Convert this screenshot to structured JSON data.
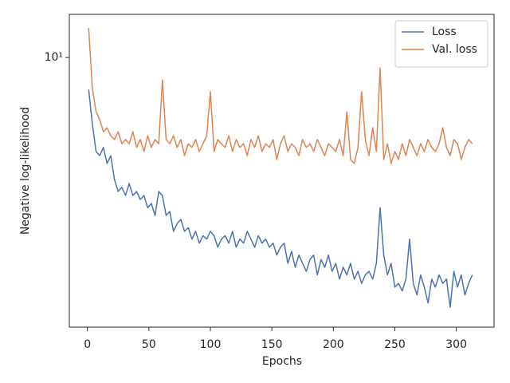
{
  "chart_data": {
    "type": "line",
    "xlabel": "Epochs",
    "ylabel": "Negative log-likelihood",
    "x": [
      1,
      4,
      7,
      10,
      13,
      16,
      19,
      22,
      25,
      28,
      31,
      34,
      37,
      40,
      43,
      46,
      49,
      52,
      55,
      58,
      61,
      64,
      67,
      70,
      73,
      76,
      79,
      82,
      85,
      88,
      91,
      94,
      97,
      100,
      103,
      106,
      109,
      112,
      115,
      118,
      121,
      124,
      127,
      130,
      133,
      136,
      139,
      142,
      145,
      148,
      151,
      154,
      157,
      160,
      163,
      166,
      169,
      172,
      175,
      178,
      181,
      184,
      187,
      190,
      193,
      196,
      199,
      202,
      205,
      208,
      211,
      214,
      217,
      220,
      223,
      226,
      229,
      232,
      235,
      238,
      241,
      244,
      247,
      250,
      253,
      256,
      259,
      262,
      265,
      268,
      271,
      274,
      277,
      280,
      283,
      286,
      289,
      292,
      295,
      298,
      301,
      304,
      307,
      310,
      313
    ],
    "series": [
      {
        "name": "Loss",
        "color": "#4c72b0",
        "values": [
          8.48,
          7.11,
          6.16,
          6.03,
          6.29,
          5.79,
          6.03,
          5.33,
          5.01,
          5.12,
          4.91,
          5.22,
          4.91,
          5.01,
          4.81,
          4.91,
          4.61,
          4.71,
          4.43,
          5.01,
          4.91,
          4.43,
          4.52,
          4.08,
          4.25,
          4.34,
          4.08,
          4.16,
          3.92,
          4.08,
          3.84,
          3.99,
          3.92,
          4.08,
          3.99,
          3.76,
          3.92,
          3.99,
          3.84,
          4.08,
          3.76,
          3.92,
          3.84,
          4.08,
          3.92,
          3.76,
          3.99,
          3.84,
          3.92,
          3.76,
          3.84,
          3.61,
          3.76,
          3.84,
          3.46,
          3.68,
          3.39,
          3.61,
          3.46,
          3.32,
          3.53,
          3.61,
          3.26,
          3.53,
          3.39,
          3.61,
          3.32,
          3.46,
          3.19,
          3.39,
          3.26,
          3.46,
          3.19,
          3.32,
          3.12,
          3.26,
          3.32,
          3.19,
          3.46,
          4.61,
          3.61,
          3.26,
          3.46,
          3.06,
          3.12,
          3.0,
          3.19,
          3.92,
          3.12,
          2.94,
          3.26,
          3.06,
          2.82,
          3.19,
          3.06,
          3.26,
          3.12,
          3.19,
          2.76,
          3.32,
          3.06,
          3.26,
          2.94,
          3.12,
          3.26
        ]
      },
      {
        "name": "Val. loss",
        "color": "#dd8452",
        "values": [
          11.64,
          8.55,
          7.56,
          7.26,
          6.82,
          6.96,
          6.68,
          6.55,
          6.82,
          6.41,
          6.55,
          6.41,
          6.82,
          6.29,
          6.55,
          6.16,
          6.68,
          6.29,
          6.55,
          6.41,
          8.91,
          6.55,
          6.41,
          6.68,
          6.29,
          6.55,
          6.03,
          6.41,
          6.29,
          6.55,
          6.16,
          6.41,
          6.68,
          8.38,
          6.16,
          6.55,
          6.41,
          6.29,
          6.68,
          6.16,
          6.55,
          6.29,
          6.41,
          6.03,
          6.55,
          6.29,
          6.68,
          6.16,
          6.41,
          6.29,
          6.55,
          5.91,
          6.41,
          6.68,
          6.16,
          6.41,
          6.29,
          6.03,
          6.55,
          6.29,
          6.41,
          6.16,
          6.55,
          6.29,
          6.03,
          6.41,
          6.29,
          6.16,
          6.55,
          6.03,
          7.56,
          5.91,
          5.79,
          6.29,
          8.38,
          6.55,
          6.03,
          6.96,
          6.16,
          9.48,
          5.91,
          6.41,
          5.79,
          6.16,
          5.91,
          6.41,
          6.03,
          6.55,
          6.29,
          6.03,
          6.41,
          6.16,
          6.55,
          6.29,
          6.16,
          6.41,
          6.96,
          6.29,
          6.03,
          6.55,
          6.41,
          5.91,
          6.29,
          6.55,
          6.41
        ]
      }
    ],
    "xlim": [
      -14.7,
      330.7
    ],
    "xticks": [
      0,
      50,
      100,
      150,
      200,
      250,
      300
    ],
    "ylim": [
      2.49,
      12.49
    ],
    "yticks": [
      {
        "value": 10,
        "label": "10¹"
      }
    ],
    "yscale": "log",
    "grid": false,
    "legend": "upper right"
  }
}
